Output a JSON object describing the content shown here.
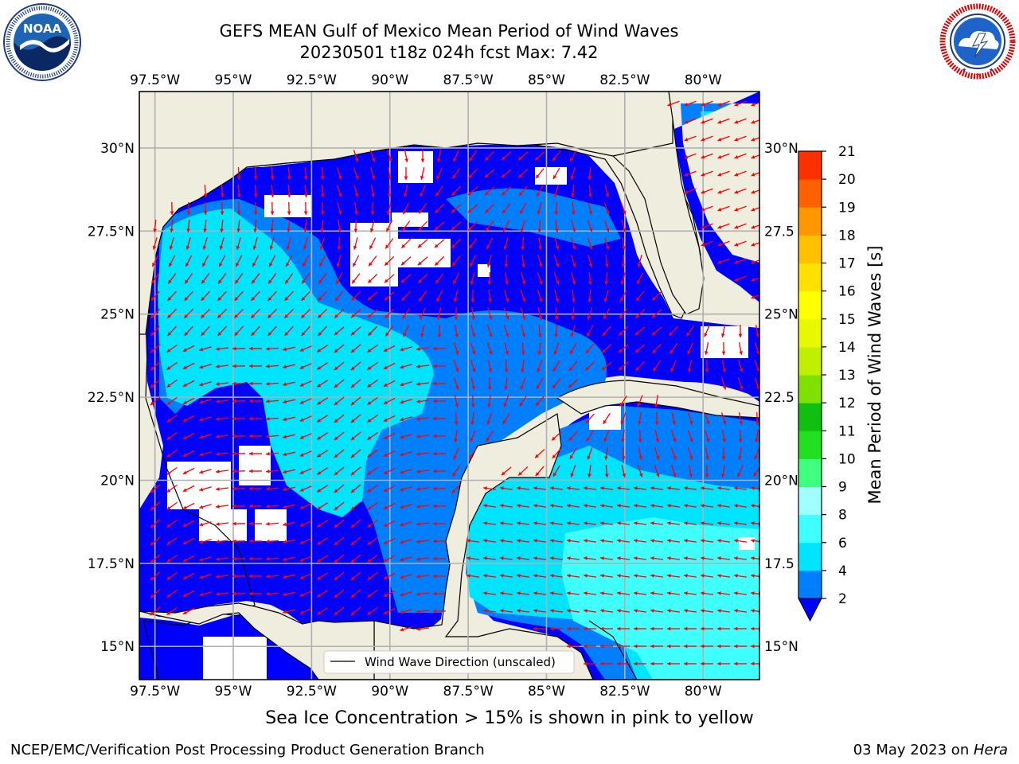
{
  "header": {
    "title_line1": "GEFS MEAN Gulf of Mexico Mean Period of Wind Waves",
    "title_line2": "20230501 t18z 024h fcst   Max: 7.42"
  },
  "logos": {
    "left": {
      "icon": "noaa-logo",
      "text": "NOAA",
      "ring": "NATIONAL OCEANIC AND ATMOSPHERIC ADMINISTRATION · U.S. DEPARTMENT OF COMMERCE"
    },
    "right": {
      "icon": "nws-logo",
      "ring": "NATIONAL WEATHER SERVICE"
    }
  },
  "map": {
    "lon_labels": [
      "97.5°W",
      "95°W",
      "92.5°W",
      "90°W",
      "87.5°W",
      "85°W",
      "82.5°W",
      "80°W"
    ],
    "lon_values": [
      -97.5,
      -95,
      -92.5,
      -90,
      -87.5,
      -85,
      -82.5,
      -80
    ],
    "lat_labels_left": [
      "30°N",
      "27.5°N",
      "25°N",
      "22.5°N",
      "20°N",
      "17.5°N",
      "15°N"
    ],
    "lat_labels_right": [
      "30°N",
      "27.5",
      "25°N",
      "22.5",
      "20°N",
      "17.5",
      "15°N"
    ],
    "lat_values": [
      30,
      27.5,
      25,
      22.5,
      20,
      17.5,
      15
    ],
    "lon_range": [
      -98,
      -78.2
    ],
    "lat_range": [
      14,
      31.7
    ],
    "legend": "Wind Wave Direction (unscaled)",
    "arrow_color": "#ff0000",
    "land_color": "#efedde"
  },
  "colorbar": {
    "label": "Mean Period of Wind Waves [s]",
    "ticks": [
      "2",
      "4",
      "6",
      "8",
      "9",
      "10",
      "11",
      "12",
      "13",
      "14",
      "15",
      "16",
      "17",
      "18",
      "19",
      "20",
      "21"
    ],
    "colors": [
      "#0080ff",
      "#00e5ff",
      "#40ffff",
      "#a0ffff",
      "#40ff80",
      "#20e020",
      "#10c010",
      "#80e000",
      "#c0f000",
      "#e8f800",
      "#ffff00",
      "#ffe000",
      "#ffc000",
      "#ff9800",
      "#ff6000",
      "#ff3000"
    ],
    "extend_color": "#0000ff"
  },
  "caption": "Sea Ice Concentration > 15% is shown in pink to yellow",
  "footer": {
    "left": "NCEP/EMC/Verification Post Processing Product Generation Branch",
    "date": "03 May 2023 on ",
    "machine": "Hera"
  }
}
